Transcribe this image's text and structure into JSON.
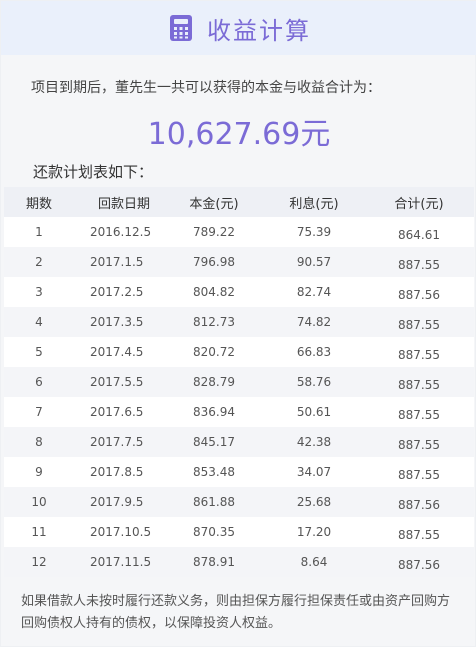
{
  "header": {
    "title": "收益计算",
    "icon": "calculator-icon",
    "accent": "#7b6bd6"
  },
  "summary": {
    "intro": "项目到期后，董先生一共可以获得的本金与收益合计为：",
    "total": "10,627.69元"
  },
  "plan": {
    "label": "还款计划表如下：",
    "columns": [
      "期数",
      "回款日期",
      "本金(元)",
      "利息(元)",
      "合计(元)"
    ],
    "rows": [
      [
        "1",
        "2016.12.5",
        "789.22",
        "75.39",
        "864.61"
      ],
      [
        "2",
        "2017.1.5",
        "796.98",
        "90.57",
        "887.55"
      ],
      [
        "3",
        "2017.2.5",
        "804.82",
        "82.74",
        "887.56"
      ],
      [
        "4",
        "2017.3.5",
        "812.73",
        "74.82",
        "887.55"
      ],
      [
        "5",
        "2017.4.5",
        "820.72",
        "66.83",
        "887.55"
      ],
      [
        "6",
        "2017.5.5",
        "828.79",
        "58.76",
        "887.55"
      ],
      [
        "7",
        "2017.6.5",
        "836.94",
        "50.61",
        "887.55"
      ],
      [
        "8",
        "2017.7.5",
        "845.17",
        "42.38",
        "887.55"
      ],
      [
        "9",
        "2017.8.5",
        "853.48",
        "34.07",
        "887.55"
      ],
      [
        "10",
        "2017.9.5",
        "861.88",
        "25.68",
        "887.56"
      ],
      [
        "11",
        "2017.10.5",
        "870.35",
        "17.20",
        "887.55"
      ],
      [
        "12",
        "2017.11.5",
        "878.91",
        "8.64",
        "887.56"
      ]
    ]
  },
  "note": "如果借款人未按时履行还款义务，则由担保方履行担保责任或由资产回购方回购债权人持有的债权，以保障投资人权益。"
}
